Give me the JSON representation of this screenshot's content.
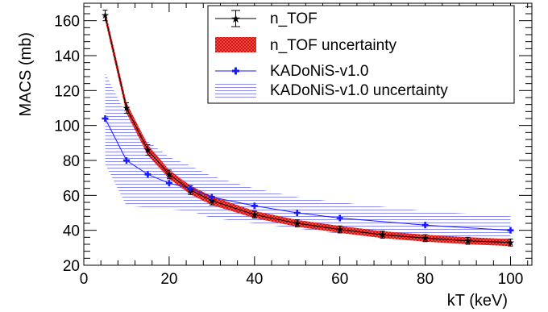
{
  "chart_data": {
    "type": "line",
    "xlabel": "kT (keV)",
    "ylabel": "MACS (mb)",
    "xlim": [
      0,
      105
    ],
    "ylim": [
      20,
      170
    ],
    "xticks": [
      0,
      20,
      40,
      60,
      80,
      100
    ],
    "yticks": [
      20,
      40,
      60,
      80,
      100,
      120,
      140,
      160
    ],
    "grid": false,
    "legend_position": "top-right",
    "colors": {
      "ntof_line": "#000000",
      "ntof_band": "#e8130f",
      "kadonis_line": "#1a1aff",
      "kadonis_band": "#8c8cf0"
    },
    "series": [
      {
        "name": "n_TOF",
        "x": [
          5,
          10,
          15,
          20,
          25,
          30,
          40,
          50,
          60,
          70,
          80,
          90,
          100
        ],
        "y": [
          163,
          110,
          86,
          72,
          63,
          57,
          49,
          44,
          40.5,
          37.5,
          35.5,
          34,
          33
        ],
        "uncertainty": [
          3,
          3,
          3,
          2.5,
          2.5,
          2.5,
          2,
          2,
          2,
          2,
          2,
          2,
          2
        ]
      },
      {
        "name": "KADoNiS-v1.0",
        "x": [
          5,
          10,
          15,
          20,
          25,
          30,
          40,
          50,
          60,
          80,
          100
        ],
        "y": [
          104,
          80,
          72,
          67,
          64,
          59,
          54,
          50,
          47,
          43,
          40
        ],
        "uncertainty": [
          26,
          26,
          19,
          15,
          13,
          12,
          10,
          9,
          9,
          8,
          8
        ]
      }
    ],
    "legend": [
      {
        "label": "n_TOF",
        "symbol": "star-errorbar"
      },
      {
        "label": "n_TOF uncertainty",
        "symbol": "red-band"
      },
      {
        "label": "KADoNiS-v1.0",
        "symbol": "blue-cross-line"
      },
      {
        "label": "KADoNiS-v1.0 uncertainty",
        "symbol": "blue-hatch"
      }
    ]
  }
}
